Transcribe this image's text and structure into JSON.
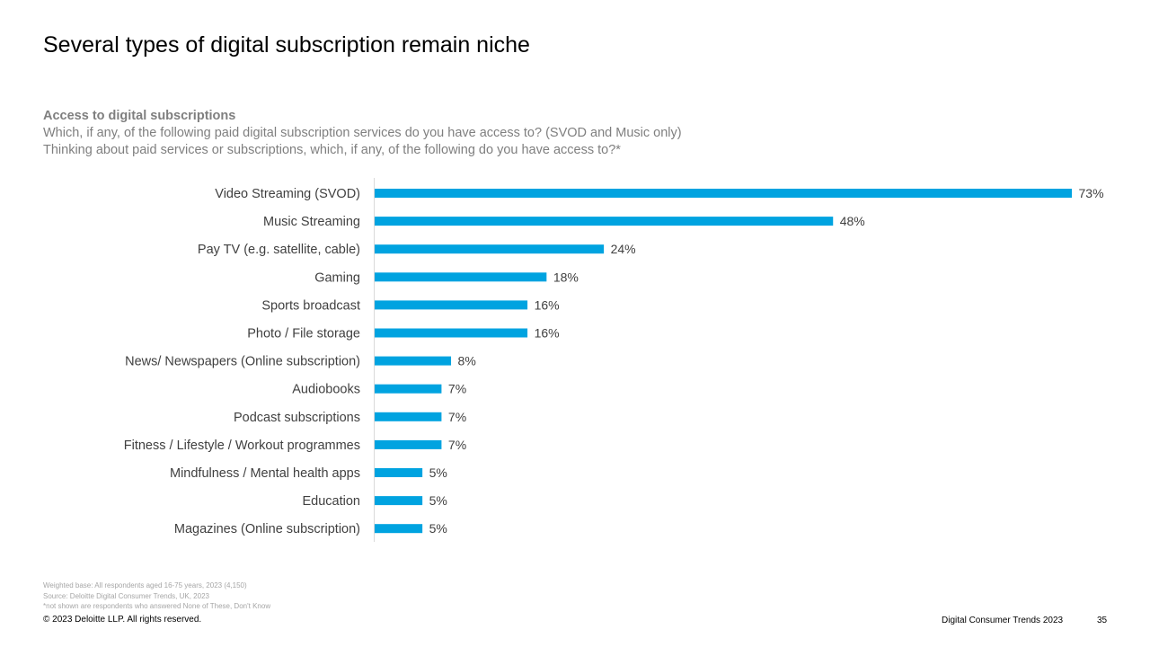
{
  "slide": {
    "title": "Several types of digital subscription remain niche",
    "subtitle_heading": "Access to digital subscriptions",
    "question_1": "Which, if any, of the following paid digital subscription services do you have access to? (SVOD and Music only)",
    "question_2": "Thinking about paid services or subscriptions, which, if any, of the following do you have access to?*"
  },
  "chart_data": {
    "type": "bar",
    "orientation": "horizontal",
    "categories": [
      "Video Streaming (SVOD)",
      "Music Streaming",
      "Pay TV (e.g. satellite, cable)",
      "Gaming",
      "Sports broadcast",
      "Photo / File storage",
      "News/ Newspapers (Online subscription)",
      "Audiobooks",
      "Podcast subscriptions",
      "Fitness / Lifestyle / Workout programmes",
      "Mindfulness / Mental health apps",
      "Education",
      "Magazines (Online subscription)"
    ],
    "values": [
      73,
      48,
      24,
      18,
      16,
      16,
      8,
      7,
      7,
      7,
      5,
      5,
      5
    ],
    "value_labels": [
      "73%",
      "48%",
      "24%",
      "18%",
      "16%",
      "16%",
      "8%",
      "7%",
      "7%",
      "7%",
      "5%",
      "5%",
      "5%"
    ],
    "xlim": [
      0,
      73
    ],
    "grid": false,
    "bar_color": "#00a3e0"
  },
  "footer": {
    "base_note": "Weighted base: All respondents aged 16-75 years, 2023 (4,150)",
    "source_note": "Source: Deloitte Digital Consumer Trends, UK, 2023",
    "exclusion_note": "*not shown are respondents who answered None of These, Don't Know",
    "copyright": "© 2023 Deloitte LLP. All rights reserved.",
    "report_name": "Digital Consumer Trends 2023",
    "page_number": "35"
  }
}
